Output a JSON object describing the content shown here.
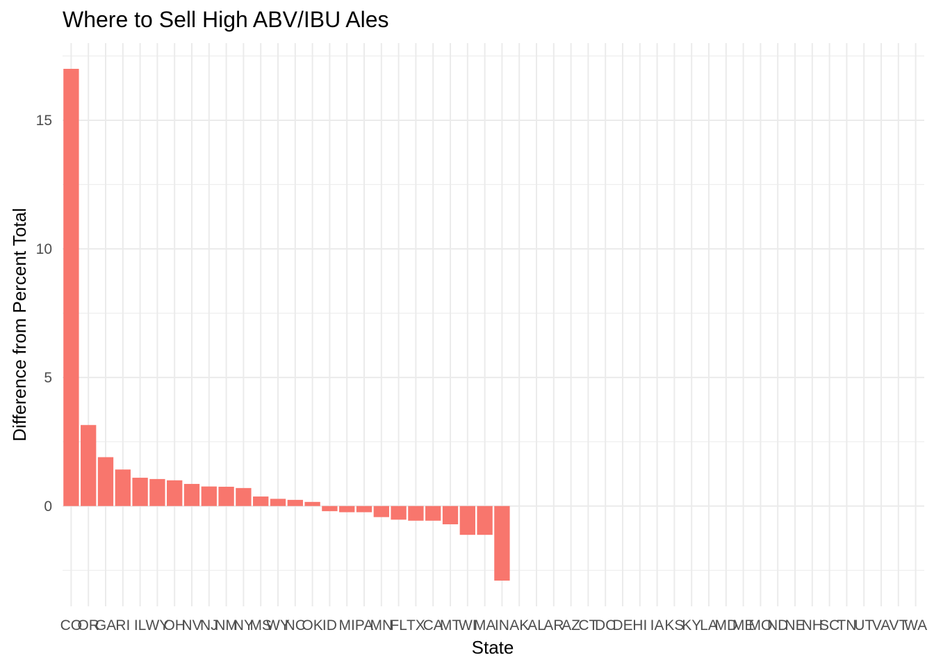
{
  "chart_data": {
    "type": "bar",
    "title": "Where to Sell High ABV/IBU Ales",
    "xlabel": "State",
    "ylabel": "Difference from Percent Total",
    "categories": [
      "CO",
      "OR",
      "GA",
      "RI",
      "IL",
      "WY",
      "OH",
      "NV",
      "NJ",
      "NM",
      "NY",
      "MS",
      "WY",
      "NC",
      "OK",
      "ID",
      "MI",
      "PA",
      "MN",
      "FL",
      "TX",
      "CA",
      "MT",
      "WI",
      "MA",
      "IN",
      "AK",
      "AL",
      "AR",
      "AZ",
      "CT",
      "DC",
      "DE",
      "HI",
      "IA",
      "KS",
      "KY",
      "LA",
      "MD",
      "ME",
      "MO",
      "ND",
      "NE",
      "NH",
      "SC",
      "TN",
      "UT",
      "VA",
      "VT",
      "WA"
    ],
    "values": [
      17.0,
      3.15,
      1.9,
      1.42,
      1.1,
      1.05,
      1.0,
      0.86,
      0.76,
      0.75,
      0.7,
      0.37,
      0.28,
      0.24,
      0.16,
      -0.2,
      -0.24,
      -0.24,
      -0.43,
      -0.53,
      -0.57,
      -0.57,
      -0.71,
      -1.12,
      -1.12,
      -2.9,
      0,
      0,
      0,
      0,
      0,
      0,
      0,
      0,
      0,
      0,
      0,
      0,
      0,
      0,
      0,
      0,
      0,
      0,
      0,
      0,
      0,
      0,
      0,
      0
    ],
    "ylim": [
      -3.9,
      18.0
    ],
    "yticks": [
      0,
      5,
      10,
      15
    ],
    "grid": true,
    "bar_color": "#F8766D",
    "grid_color": "#EBEBEB"
  }
}
